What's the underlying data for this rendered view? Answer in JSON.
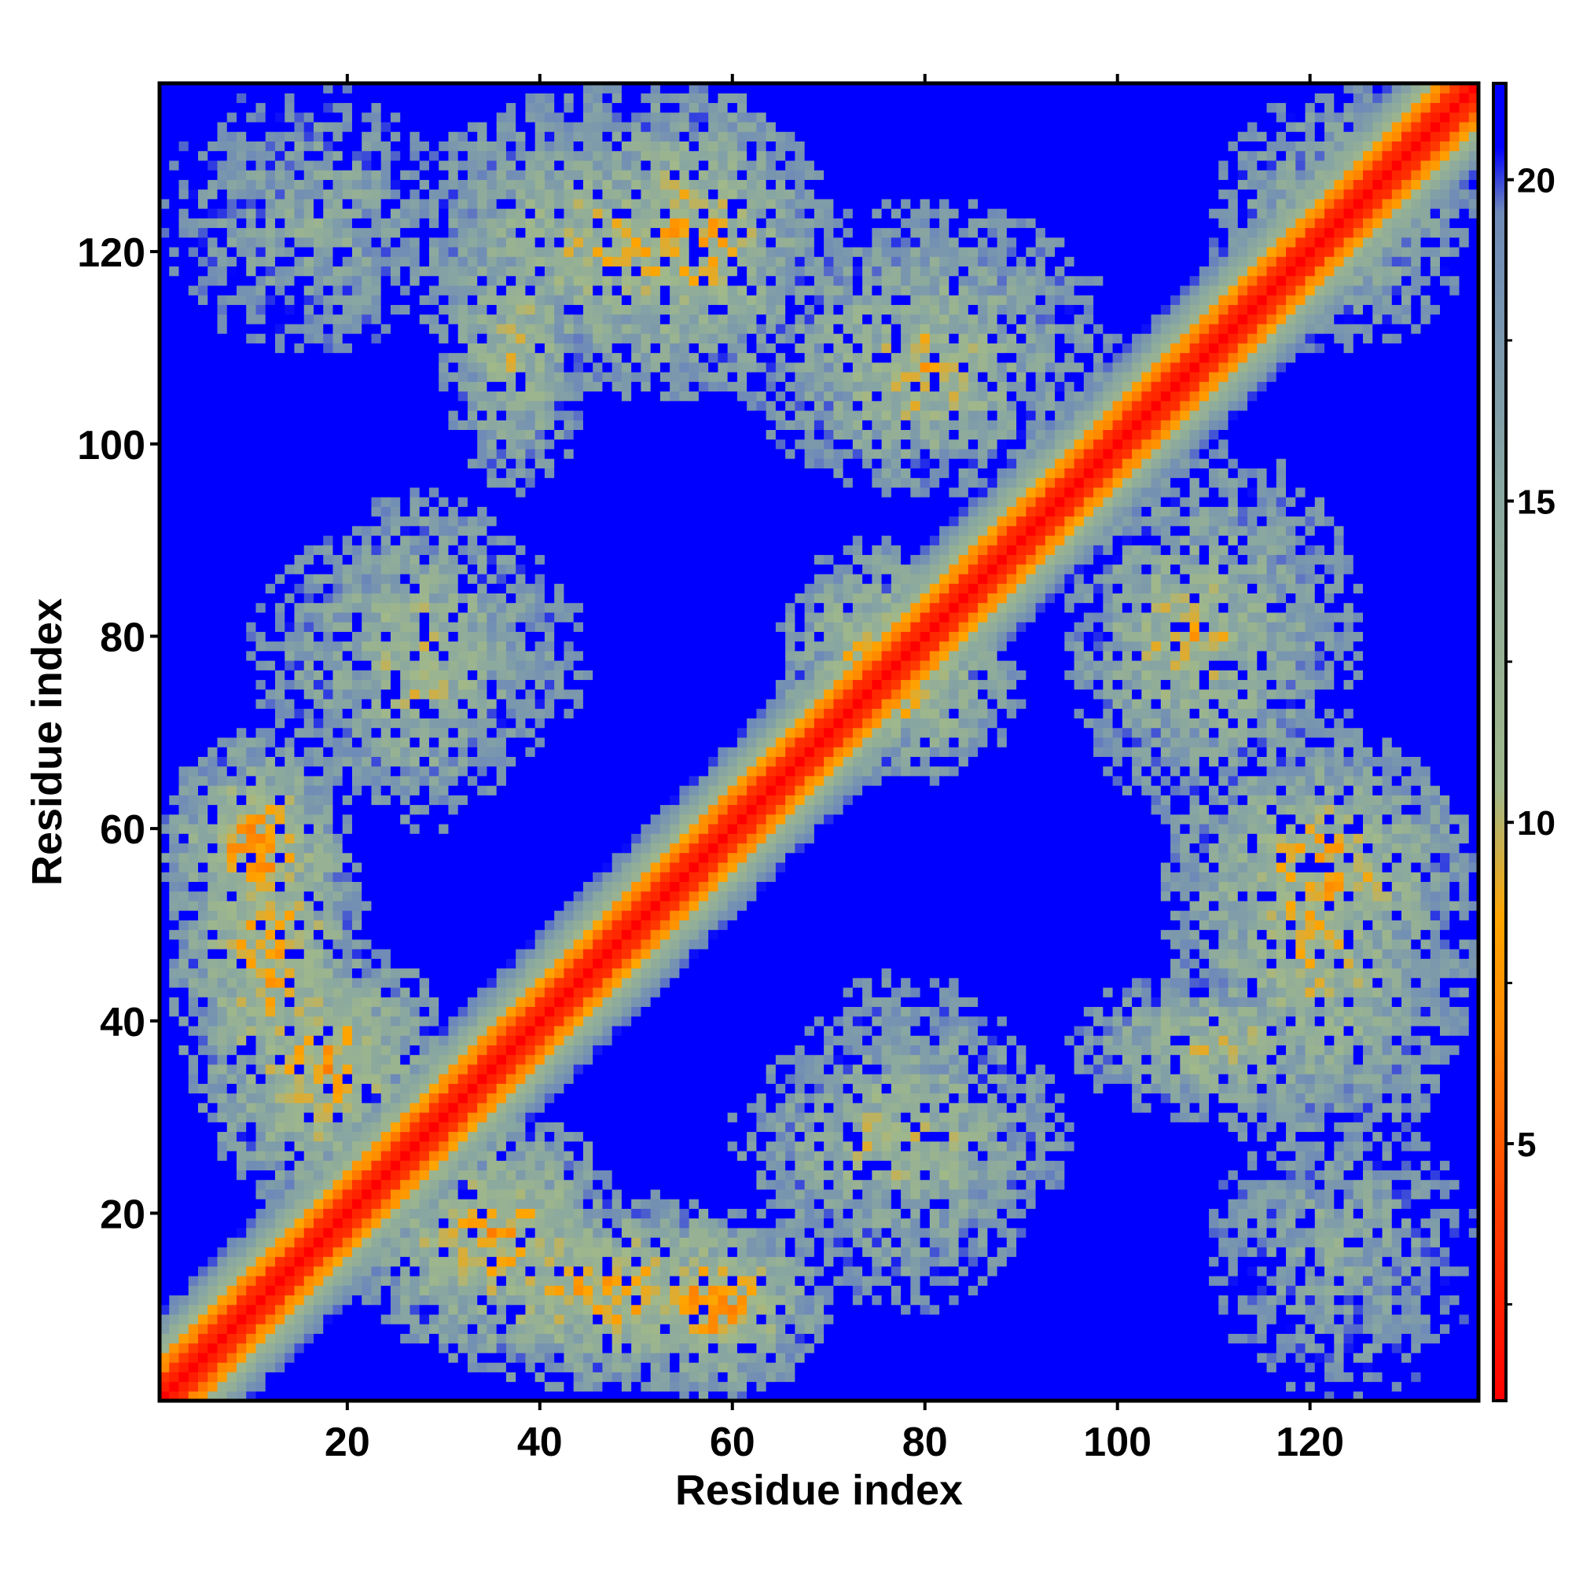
{
  "chart_data": {
    "type": "heatmap",
    "title": "",
    "xlabel": "Residue index",
    "ylabel": "Residue index",
    "n_residues": 137,
    "x_range": [
      1,
      137
    ],
    "y_range": [
      1,
      137
    ],
    "x_ticks": [
      20,
      40,
      60,
      80,
      100,
      120
    ],
    "y_ticks": [
      20,
      40,
      60,
      80,
      100,
      120
    ],
    "colorbar": {
      "range": [
        1,
        21.5
      ],
      "ticks": [
        5,
        10,
        15,
        20
      ],
      "stops": [
        {
          "value": 1,
          "color": "#ff0000"
        },
        {
          "value": 4,
          "color": "#ff4000"
        },
        {
          "value": 7,
          "color": "#ff8c00"
        },
        {
          "value": 8.5,
          "color": "#ffa500"
        },
        {
          "value": 10.5,
          "color": "#a0b88a"
        },
        {
          "value": 15,
          "color": "#8aa8a0"
        },
        {
          "value": 19.5,
          "color": "#6e8ab8"
        },
        {
          "value": 20.5,
          "color": "#0000ff"
        },
        {
          "value": 21.5,
          "color": "#0000ff"
        }
      ]
    },
    "diagonal_distance": 1,
    "saturation_distance": 21.5,
    "contact_regions": [
      {
        "x": [
          1,
          30
        ],
        "y": [
          110,
          137
        ],
        "min_distance": 11
      },
      {
        "x": [
          25,
          70
        ],
        "y": [
          105,
          137
        ],
        "min_distance": 7
      },
      {
        "x": [
          60,
          100
        ],
        "y": [
          95,
          125
        ],
        "min_distance": 8
      },
      {
        "x": [
          10,
          45
        ],
        "y": [
          65,
          92
        ],
        "min_distance": 8
      },
      {
        "x": [
          1,
          20
        ],
        "y": [
          45,
          70
        ],
        "min_distance": 4
      },
      {
        "x": [
          5,
          30
        ],
        "y": [
          20,
          50
        ],
        "min_distance": 5
      },
      {
        "x": [
          25,
          70
        ],
        "y": [
          2,
          22
        ],
        "min_distance": 5
      },
      {
        "x": [
          60,
          95
        ],
        "y": [
          15,
          40
        ],
        "min_distance": 7
      },
      {
        "x": [
          65,
          85
        ],
        "y": [
          65,
          90
        ],
        "min_distance": 5
      },
      {
        "x": [
          95,
          120
        ],
        "y": [
          65,
          95
        ],
        "min_distance": 6
      },
      {
        "x": [
          105,
          137
        ],
        "y": [
          40,
          70
        ],
        "min_distance": 5
      },
      {
        "x": [
          110,
          137
        ],
        "y": [
          5,
          30
        ],
        "min_distance": 10
      },
      {
        "x": [
          110,
          137
        ],
        "y": [
          110,
          137
        ],
        "min_distance": 9
      },
      {
        "x": [
          95,
          125
        ],
        "y": [
          30,
          45
        ],
        "min_distance": 7
      }
    ]
  }
}
